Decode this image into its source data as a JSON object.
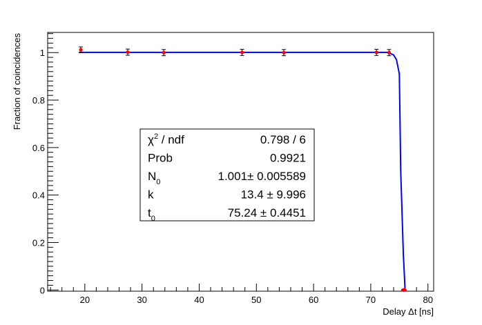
{
  "chart_data": {
    "type": "scatter",
    "xlabel": "Delay Δt [ns]",
    "ylabel": "Fraction of coincidences",
    "xlim": [
      13.5,
      81
    ],
    "ylim": [
      -0.005,
      1.085
    ],
    "x_ticks": [
      20,
      30,
      40,
      50,
      60,
      70,
      80
    ],
    "y_ticks": [
      0,
      0.2,
      0.4,
      0.6,
      0.8,
      1
    ],
    "grid": false,
    "series": [
      {
        "kind": "points_with_errors",
        "color": "#ff0000",
        "points": [
          {
            "x": 19.3,
            "y": 1.012,
            "err": 0.012
          },
          {
            "x": 27.5,
            "y": 1.002,
            "err": 0.013
          },
          {
            "x": 33.8,
            "y": 1.0,
            "err": 0.013
          },
          {
            "x": 47.5,
            "y": 1.001,
            "err": 0.013
          },
          {
            "x": 54.8,
            "y": 1.0,
            "err": 0.013
          },
          {
            "x": 71.0,
            "y": 1.001,
            "err": 0.013
          },
          {
            "x": 73.2,
            "y": 1.0,
            "err": 0.013
          },
          {
            "x": 75.7,
            "y": 0.0,
            "err": 0.002
          },
          {
            "x": 75.9,
            "y": 0.0,
            "err": 0.002
          }
        ]
      },
      {
        "kind": "fit_curve",
        "color": "#0000ff",
        "x": [
          19.0,
          30.0,
          40.0,
          50.0,
          60.0,
          70.0,
          73.0,
          74.0,
          74.5,
          75.0,
          75.24,
          75.5,
          75.7,
          75.9,
          76.0
        ],
        "y": [
          1.001,
          1.001,
          1.001,
          1.001,
          1.001,
          1.001,
          1.001,
          0.99,
          0.97,
          0.91,
          0.5,
          0.3,
          0.15,
          0.05,
          0.0
        ]
      }
    ],
    "stats_box": {
      "rows": [
        {
          "label_main": "χ",
          "label_sup": "2",
          "label_rest": " / ndf",
          "value": "0.798 / 6"
        },
        {
          "label_main": "Prob",
          "label_sup": "",
          "label_rest": "",
          "value": "0.9921"
        },
        {
          "label_main": "N",
          "label_sub": "0",
          "label_rest": "",
          "value": "1.001± 0.005589"
        },
        {
          "label_main": "k",
          "label_sup": "",
          "label_rest": "",
          "value": "13.4 ± 9.996"
        },
        {
          "label_main": "t",
          "label_sub": "0",
          "label_rest": "",
          "value": "75.24 ± 0.4451"
        }
      ]
    }
  }
}
